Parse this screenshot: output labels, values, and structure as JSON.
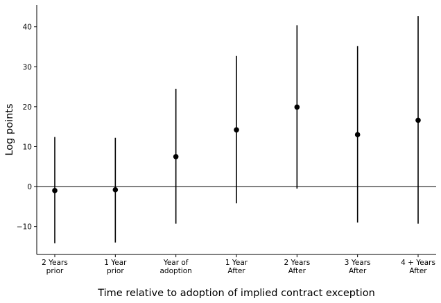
{
  "chart_data": {
    "type": "scatter",
    "title": "",
    "xlabel": "Time relative to adoption of implied contract exception",
    "ylabel": "Log points",
    "categories": [
      [
        "2 Years",
        "prior"
      ],
      [
        "1 Year",
        "prior"
      ],
      [
        "Year of",
        "adoption"
      ],
      [
        "1 Year",
        "After"
      ],
      [
        "2 Years",
        "After"
      ],
      [
        "3 Years",
        "After"
      ],
      [
        "4 + Years",
        "After"
      ]
    ],
    "series": [
      {
        "estimate": [
          -1.0,
          -0.8,
          7.5,
          14.2,
          19.9,
          13.0,
          16.6
        ],
        "ci_low": [
          -14.2,
          -14.0,
          -9.3,
          -4.2,
          -0.5,
          -9.0,
          -9.3
        ],
        "ci_high": [
          12.4,
          12.2,
          24.5,
          32.7,
          40.4,
          35.2,
          42.7
        ]
      }
    ],
    "ylim": [
      -17,
      45.5
    ],
    "yticks": [
      -10,
      0,
      10,
      20,
      30,
      40
    ],
    "ytick_labels": [
      "−10",
      "0",
      "10",
      "20",
      "30",
      "40"
    ],
    "reference_line_y": 0,
    "grid": false,
    "legend": "none",
    "colors": {
      "points": "#000000",
      "error_bars": "#000000",
      "zero_line": "#000000"
    }
  }
}
